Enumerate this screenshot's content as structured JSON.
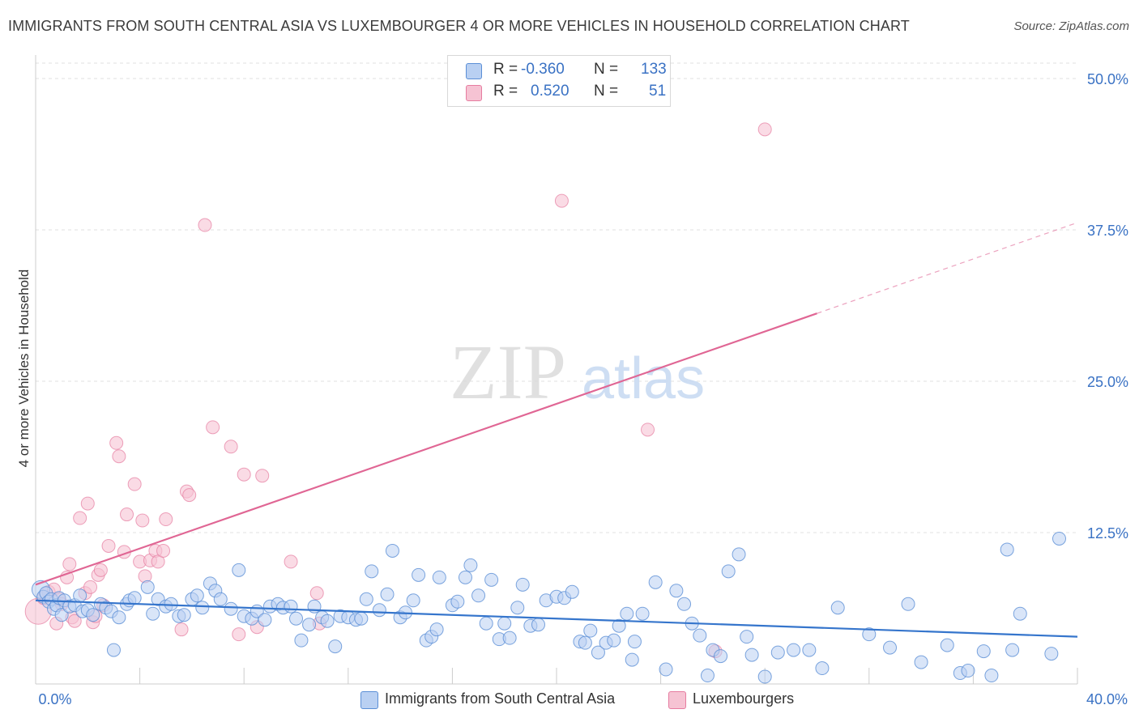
{
  "chart_data": {
    "type": "scatter",
    "title": "IMMIGRANTS FROM SOUTH CENTRAL ASIA VS LUXEMBOURGER 4 OR MORE VEHICLES IN HOUSEHOLD CORRELATION CHART",
    "source": "Source: ZipAtlas.com",
    "xlabel": "",
    "ylabel": "4 or more Vehicles in Household",
    "xlim": [
      0,
      40
    ],
    "ylim": [
      0,
      50
    ],
    "x_tick_labels": [
      "0.0%",
      "40.0%"
    ],
    "y_ticks": [
      12.5,
      25.0,
      37.5,
      50.0
    ],
    "y_tick_labels": [
      "12.5%",
      "25.0%",
      "37.5%",
      "50.0%"
    ],
    "watermark": "ZIPatlas",
    "legend": [
      {
        "r_label": "R =",
        "r_value": "-0.360",
        "n_label": "N =",
        "n_value": "133"
      },
      {
        "r_label": "R =",
        "r_value": "0.520",
        "n_label": "N =",
        "n_value": "51"
      }
    ],
    "colors": {
      "blue": "#5b8fd6",
      "blue_fill": "#b9d0f2",
      "pink": "#e67ca0",
      "pink_fill": "#f6c3d3",
      "trend_blue": "#3575cc",
      "trend_pink": "#e06694"
    },
    "series": [
      {
        "name": "Immigrants from South Central Asia",
        "trend": {
          "x0": 0,
          "y0": 6.9,
          "x1": 40,
          "y1": 3.9
        },
        "points": [
          [
            0.2,
            7.8
          ],
          [
            0.3,
            7.2
          ],
          [
            0.4,
            7.5
          ],
          [
            0.5,
            6.8
          ],
          [
            0.6,
            7.0
          ],
          [
            0.7,
            6.2
          ],
          [
            0.8,
            6.5
          ],
          [
            0.9,
            7.1
          ],
          [
            1.0,
            5.7
          ],
          [
            1.1,
            6.9
          ],
          [
            1.3,
            6.4
          ],
          [
            1.5,
            6.5
          ],
          [
            1.7,
            7.3
          ],
          [
            1.8,
            6.0
          ],
          [
            2.0,
            6.1
          ],
          [
            2.2,
            5.7
          ],
          [
            2.5,
            6.6
          ],
          [
            2.7,
            6.3
          ],
          [
            2.9,
            6.0
          ],
          [
            3.0,
            2.8
          ],
          [
            3.2,
            5.5
          ],
          [
            3.5,
            6.6
          ],
          [
            3.6,
            6.9
          ],
          [
            3.8,
            7.1
          ],
          [
            4.3,
            8.0
          ],
          [
            4.5,
            5.8
          ],
          [
            4.7,
            7.0
          ],
          [
            5.0,
            6.4
          ],
          [
            5.2,
            6.6
          ],
          [
            5.5,
            5.6
          ],
          [
            5.7,
            5.7
          ],
          [
            6.0,
            7.0
          ],
          [
            6.2,
            7.3
          ],
          [
            6.4,
            6.3
          ],
          [
            6.7,
            8.3
          ],
          [
            6.9,
            7.7
          ],
          [
            7.1,
            7.0
          ],
          [
            7.5,
            6.2
          ],
          [
            7.8,
            9.4
          ],
          [
            8.0,
            5.6
          ],
          [
            8.3,
            5.4
          ],
          [
            8.5,
            6.0
          ],
          [
            8.8,
            5.3
          ],
          [
            9.0,
            6.4
          ],
          [
            9.3,
            6.6
          ],
          [
            9.5,
            6.3
          ],
          [
            9.8,
            6.4
          ],
          [
            10.0,
            5.4
          ],
          [
            10.2,
            3.6
          ],
          [
            10.5,
            4.9
          ],
          [
            10.7,
            6.4
          ],
          [
            11.0,
            5.5
          ],
          [
            11.2,
            5.2
          ],
          [
            11.5,
            3.1
          ],
          [
            11.7,
            5.6
          ],
          [
            12.0,
            5.5
          ],
          [
            12.3,
            5.3
          ],
          [
            12.5,
            5.4
          ],
          [
            12.7,
            7.0
          ],
          [
            12.9,
            9.3
          ],
          [
            13.2,
            6.1
          ],
          [
            13.5,
            7.4
          ],
          [
            13.7,
            11.0
          ],
          [
            14.0,
            5.5
          ],
          [
            14.2,
            5.9
          ],
          [
            14.5,
            6.9
          ],
          [
            14.7,
            9.0
          ],
          [
            15.0,
            3.6
          ],
          [
            15.2,
            3.9
          ],
          [
            15.4,
            4.5
          ],
          [
            15.5,
            8.8
          ],
          [
            16.0,
            6.5
          ],
          [
            16.2,
            6.8
          ],
          [
            16.5,
            8.8
          ],
          [
            16.7,
            9.8
          ],
          [
            17.0,
            7.3
          ],
          [
            17.3,
            5.0
          ],
          [
            17.5,
            8.6
          ],
          [
            17.8,
            3.7
          ],
          [
            18.0,
            5.0
          ],
          [
            18.2,
            3.8
          ],
          [
            18.5,
            6.3
          ],
          [
            18.7,
            8.2
          ],
          [
            19.0,
            4.8
          ],
          [
            19.3,
            4.9
          ],
          [
            19.6,
            6.9
          ],
          [
            20.0,
            7.2
          ],
          [
            20.3,
            7.1
          ],
          [
            20.6,
            7.6
          ],
          [
            20.9,
            3.5
          ],
          [
            21.1,
            3.4
          ],
          [
            21.3,
            4.4
          ],
          [
            21.6,
            2.6
          ],
          [
            21.9,
            3.4
          ],
          [
            22.2,
            3.6
          ],
          [
            22.4,
            4.8
          ],
          [
            22.7,
            5.8
          ],
          [
            22.9,
            2.0
          ],
          [
            23.0,
            3.5
          ],
          [
            23.3,
            5.8
          ],
          [
            23.8,
            8.4
          ],
          [
            24.2,
            1.2
          ],
          [
            24.6,
            7.7
          ],
          [
            24.9,
            6.6
          ],
          [
            25.2,
            5.0
          ],
          [
            25.5,
            4.0
          ],
          [
            25.8,
            0.7
          ],
          [
            26.0,
            2.8
          ],
          [
            26.3,
            2.3
          ],
          [
            26.6,
            9.3
          ],
          [
            27.0,
            10.7
          ],
          [
            27.3,
            3.9
          ],
          [
            27.5,
            2.4
          ],
          [
            28.0,
            0.6
          ],
          [
            28.5,
            2.6
          ],
          [
            29.1,
            2.8
          ],
          [
            29.7,
            2.8
          ],
          [
            30.2,
            1.3
          ],
          [
            30.8,
            6.3
          ],
          [
            32.0,
            4.1
          ],
          [
            32.8,
            3.0
          ],
          [
            33.5,
            6.6
          ],
          [
            34.0,
            1.8
          ],
          [
            35.0,
            3.2
          ],
          [
            35.5,
            0.9
          ],
          [
            35.8,
            1.1
          ],
          [
            36.4,
            2.7
          ],
          [
            36.7,
            0.7
          ],
          [
            37.3,
            11.1
          ],
          [
            37.5,
            2.8
          ],
          [
            37.8,
            5.8
          ],
          [
            39.3,
            12.0
          ],
          [
            39.0,
            2.5
          ]
        ]
      },
      {
        "name": "Luxembourgers",
        "trend": {
          "x0": 0,
          "y0": 8.2,
          "x1": 30,
          "y1": 30.6,
          "dash_x1": 40,
          "dash_y1": 38.1
        },
        "points": [
          [
            0.1,
            6.0
          ],
          [
            0.3,
            7.1
          ],
          [
            0.5,
            7.6
          ],
          [
            0.7,
            7.8
          ],
          [
            0.9,
            7.0
          ],
          [
            1.0,
            6.6
          ],
          [
            1.2,
            8.8
          ],
          [
            1.3,
            9.9
          ],
          [
            1.4,
            5.5
          ],
          [
            1.5,
            5.2
          ],
          [
            1.7,
            13.7
          ],
          [
            1.9,
            7.5
          ],
          [
            2.0,
            14.9
          ],
          [
            2.1,
            8.0
          ],
          [
            2.2,
            5.1
          ],
          [
            2.3,
            5.6
          ],
          [
            2.4,
            9.0
          ],
          [
            2.5,
            9.4
          ],
          [
            2.6,
            6.5
          ],
          [
            2.8,
            11.4
          ],
          [
            3.1,
            19.9
          ],
          [
            3.2,
            18.8
          ],
          [
            3.4,
            10.9
          ],
          [
            3.5,
            14.0
          ],
          [
            3.8,
            16.5
          ],
          [
            4.0,
            10.1
          ],
          [
            4.1,
            13.5
          ],
          [
            4.2,
            8.9
          ],
          [
            4.4,
            10.2
          ],
          [
            4.6,
            11.0
          ],
          [
            4.7,
            10.1
          ],
          [
            4.9,
            11.0
          ],
          [
            5.0,
            13.6
          ],
          [
            5.6,
            4.5
          ],
          [
            5.8,
            15.9
          ],
          [
            5.9,
            15.6
          ],
          [
            6.5,
            37.9
          ],
          [
            6.8,
            21.2
          ],
          [
            7.5,
            19.6
          ],
          [
            7.8,
            4.1
          ],
          [
            8.0,
            17.3
          ],
          [
            8.5,
            4.7
          ],
          [
            8.7,
            17.2
          ],
          [
            9.8,
            10.1
          ],
          [
            10.8,
            7.5
          ],
          [
            10.9,
            5.0
          ],
          [
            20.2,
            39.9
          ],
          [
            23.5,
            21.0
          ],
          [
            26.1,
            2.7
          ],
          [
            28.0,
            45.8
          ],
          [
            0.8,
            5.0
          ]
        ]
      }
    ]
  },
  "bottom_legend": {
    "blue_label": "Immigrants from South Central Asia",
    "pink_label": "Luxembourgers"
  }
}
